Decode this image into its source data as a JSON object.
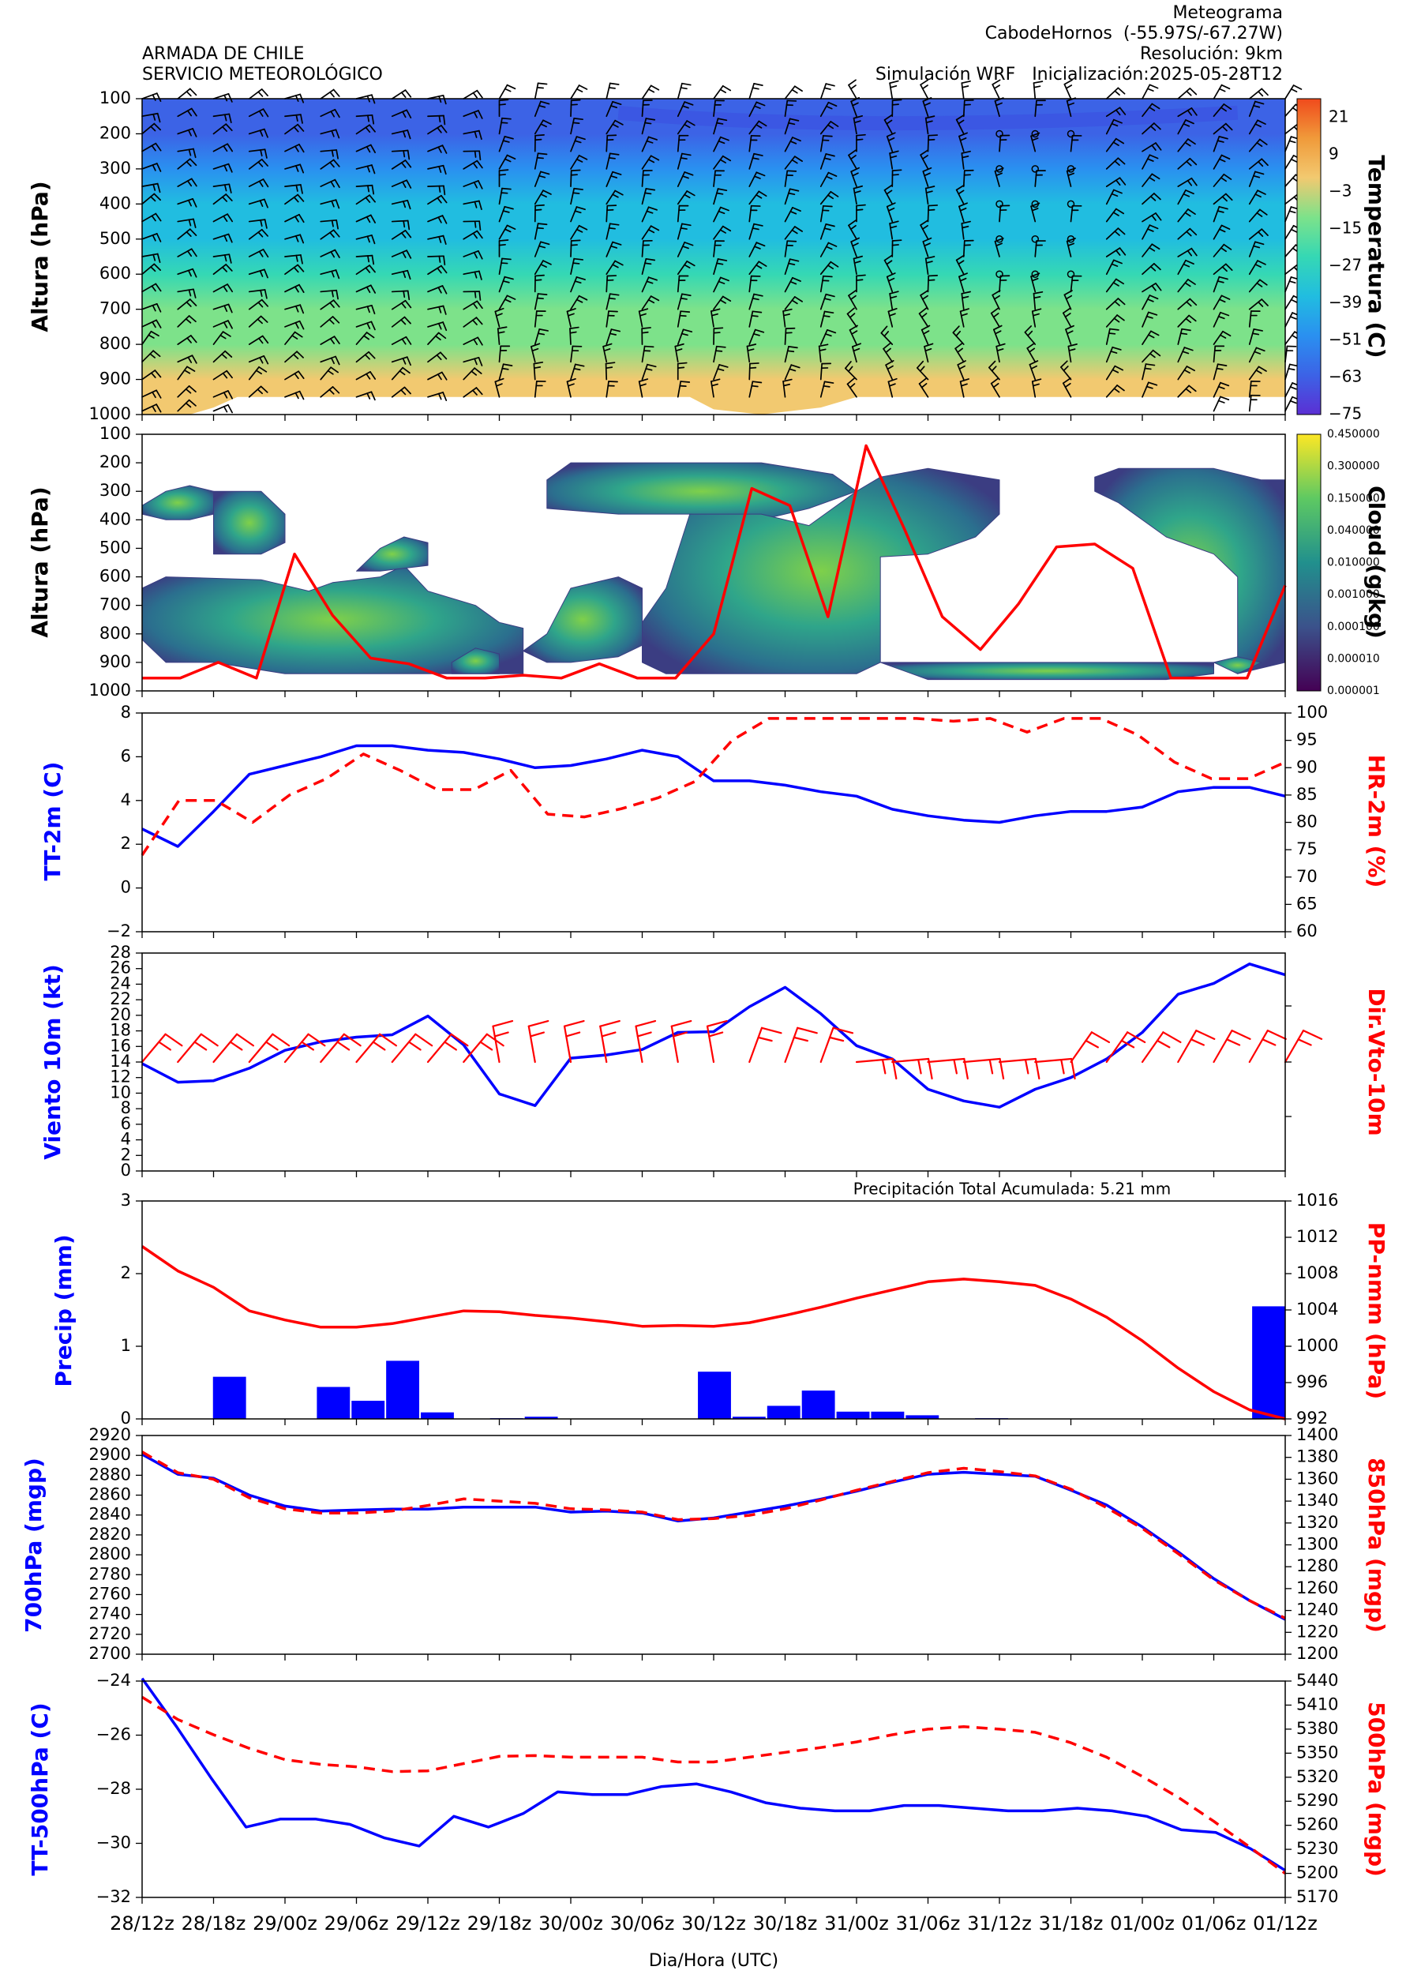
{
  "header": {
    "org_line1": "ARMADA DE CHILE",
    "org_line2": "SERVICIO METEOROLÓGICO",
    "title": "Meteograma",
    "station": "CabodeHornos  (-55.97S/-67.27W)",
    "resolution": "Resolución: 9km",
    "run": "Simulación WRF   Inicialización:2025-05-28T12"
  },
  "x_axis": {
    "label": "Dia/Hora (UTC)",
    "ticks": [
      "28/12z",
      "28/18z",
      "29/00z",
      "29/06z",
      "29/12z",
      "29/18z",
      "30/00z",
      "30/06z",
      "30/12z",
      "30/18z",
      "31/00z",
      "31/06z",
      "31/12z",
      "31/18z",
      "01/00z",
      "01/06z",
      "01/12z"
    ]
  },
  "colors": {
    "blue": "#0000ff",
    "red": "#ff0000"
  },
  "chart_data": [
    {
      "type": "heatmap",
      "panel": "temperature_wind_profile",
      "ylabel": "Altura (hPa)",
      "y_ticks": [
        "100",
        "200",
        "300",
        "400",
        "500",
        "600",
        "700",
        "800",
        "900",
        "1000"
      ],
      "ylim": [
        1000,
        100
      ],
      "colorbar_label": "Temperatura (C)",
      "colorbar_ticks": [
        "21",
        "9",
        "−3",
        "−15",
        "−27",
        "−39",
        "−51",
        "−63",
        "−75"
      ],
      "temperature_by_level": [
        {
          "level": 100,
          "t": -51
        },
        {
          "level": 200,
          "t": -57
        },
        {
          "level": 300,
          "t": -45
        },
        {
          "level": 400,
          "t": -33
        },
        {
          "level": 500,
          "t": -27
        },
        {
          "level": 600,
          "t": -19
        },
        {
          "level": 700,
          "t": -12
        },
        {
          "level": 800,
          "t": -6
        },
        {
          "level": 900,
          "t": 0
        }
      ],
      "wind_barbs": "wind barbs drawn at every level and time step"
    },
    {
      "type": "heatmap",
      "panel": "cloud_profile",
      "ylabel": "Altura (hPa)",
      "y_ticks": [
        "100",
        "200",
        "300",
        "400",
        "500",
        "600",
        "700",
        "800",
        "900",
        "1000"
      ],
      "ylim": [
        1000,
        100
      ],
      "colorbar_label": "Cloud (g/kg)",
      "colorbar_ticks": [
        "0.450000",
        "0.300000",
        "0.150000",
        "0.040000",
        "0.010000",
        "0.001000",
        "0.000100",
        "0.000010",
        "0.000001"
      ],
      "red_line_pressure_hpa": [
        955,
        955,
        900,
        955,
        520,
        735,
        885,
        905,
        955,
        955,
        945,
        955,
        905,
        955,
        955,
        800,
        290,
        350,
        740,
        140,
        430,
        740,
        855,
        695,
        495,
        485,
        570,
        955,
        955,
        955,
        630
      ]
    },
    {
      "type": "line",
      "panel": "surface_temperature_humidity",
      "ylabel": "TT-2m (C)",
      "ylabel_right": "HR-2m (%)",
      "y_ticks": [
        "−2",
        "0",
        "2",
        "4",
        "6",
        "8"
      ],
      "y_ticks_right": [
        "60",
        "65",
        "70",
        "75",
        "80",
        "85",
        "90",
        "95",
        "100"
      ],
      "ylim": [
        -2,
        8
      ],
      "ylim_right": [
        60,
        100
      ],
      "series": [
        {
          "axis": "left",
          "color": "#0000ff",
          "dash": false,
          "values": [
            2.7,
            1.9,
            3.5,
            5.2,
            5.6,
            6.0,
            6.5,
            6.5,
            6.3,
            6.2,
            5.9,
            5.5,
            5.6,
            5.9,
            6.3,
            6.0,
            4.9,
            4.9,
            4.7,
            4.4,
            4.2,
            3.6,
            3.3,
            3.1,
            3.0,
            3.3,
            3.5,
            3.5,
            3.7,
            4.4,
            4.6,
            4.6,
            4.2
          ]
        },
        {
          "axis": "right",
          "color": "#ff0000",
          "dash": true,
          "values": [
            74,
            84,
            84,
            80,
            85,
            88,
            92.5,
            89.5,
            86,
            86,
            89.5,
            81.5,
            81,
            82.5,
            84.5,
            87.5,
            95,
            99,
            99,
            99,
            99,
            99,
            98.5,
            99,
            96.5,
            99,
            99,
            96,
            91,
            88,
            88,
            91
          ]
        }
      ]
    },
    {
      "type": "line",
      "panel": "wind_10m",
      "ylabel": "Viento 10m (kt)",
      "ylabel_right": "Dir.Vto-10m",
      "y_ticks": [
        "0",
        "2",
        "4",
        "6",
        "8",
        "10",
        "12",
        "14",
        "16",
        "18",
        "20",
        "22",
        "24",
        "26",
        "28"
      ],
      "ylim": [
        0,
        28
      ],
      "series": [
        {
          "axis": "left",
          "color": "#0000ff",
          "dash": false,
          "values": [
            13.8,
            11.4,
            11.6,
            13.2,
            15.5,
            16.6,
            17.2,
            17.5,
            19.9,
            16.2,
            9.9,
            8.4,
            14.5,
            14.9,
            15.6,
            17.8,
            17.9,
            21.1,
            23.6,
            20.2,
            16.1,
            14.4,
            10.5,
            9.0,
            8.2,
            10.5,
            12.0,
            14.4,
            17.8,
            22.7,
            24.1,
            26.6,
            25.2
          ]
        }
      ],
      "wind_barbs": "red 10m wind barbs at each time step"
    },
    {
      "type": "bar",
      "panel": "precipitation_pressure",
      "ylabel": "Precip (mm)",
      "ylabel_right": "PP-nmm (hPa)",
      "annotation": "Precipitación Total Acumulada: 5.21 mm",
      "y_ticks": [
        "0",
        "1",
        "2",
        "3"
      ],
      "y_ticks_right": [
        "992",
        "996",
        "1000",
        "1004",
        "1008",
        "1012",
        "1016"
      ],
      "ylim": [
        0,
        3
      ],
      "ylim_right": [
        992,
        1016
      ],
      "bars": [
        0,
        0,
        0.58,
        0,
        0,
        0.44,
        0.25,
        0.8,
        0.09,
        0,
        0.01,
        0.03,
        0,
        0,
        0,
        0,
        0.65,
        0.03,
        0.18,
        0.39,
        0.1,
        0.1,
        0.05,
        0,
        0.01,
        0,
        0,
        0,
        0,
        0,
        0,
        0,
        1.55
      ],
      "series": [
        {
          "axis": "right",
          "color": "#ff0000",
          "dash": false,
          "values": [
            1011,
            1008.3,
            1006.5,
            1003.9,
            1002.9,
            1002.1,
            1002.1,
            1002.5,
            1003.2,
            1003.9,
            1003.8,
            1003.4,
            1003.1,
            1002.7,
            1002.2,
            1002.3,
            1002.2,
            1002.6,
            1003.4,
            1004.3,
            1005.3,
            1006.2,
            1007.1,
            1007.4,
            1007.1,
            1006.7,
            1005.2,
            1003.2,
            1000.6,
            997.6,
            995.0,
            993.0,
            992
          ]
        }
      ]
    },
    {
      "type": "line",
      "panel": "geopotential_heights",
      "ylabel": "700hPa (mgp)",
      "ylabel_right": "850hPa (mgp)",
      "y_ticks": [
        "2700",
        "2720",
        "2740",
        "2760",
        "2780",
        "2800",
        "2820",
        "2840",
        "2860",
        "2880",
        "2900",
        "2920"
      ],
      "y_ticks_right": [
        "1200",
        "1220",
        "1240",
        "1260",
        "1280",
        "1300",
        "1320",
        "1340",
        "1360",
        "1380",
        "1400"
      ],
      "ylim": [
        2700,
        2920
      ],
      "ylim_right": [
        1200,
        1400
      ],
      "series": [
        {
          "axis": "left",
          "color": "#0000ff",
          "dash": false,
          "values": [
            2901,
            2881,
            2877,
            2860,
            2849,
            2844,
            2845,
            2846,
            2846,
            2848,
            2848,
            2848,
            2843,
            2844,
            2842,
            2834,
            2837,
            2843,
            2849,
            2856,
            2864,
            2873,
            2881,
            2883,
            2881,
            2879,
            2865,
            2850,
            2828,
            2803,
            2776,
            2754,
            2735
          ]
        },
        {
          "axis": "right",
          "color": "#ff0000",
          "dash": true,
          "values": [
            1385,
            1366,
            1360,
            1343,
            1333,
            1329,
            1329,
            1331,
            1336,
            1342,
            1340,
            1338,
            1333,
            1332,
            1330,
            1323,
            1324,
            1327,
            1333,
            1341,
            1350,
            1358,
            1366,
            1370,
            1367,
            1363,
            1351,
            1334,
            1315,
            1292,
            1268,
            1249,
            1233
          ]
        }
      ]
    },
    {
      "type": "line",
      "panel": "mid_level_temperature_height",
      "ylabel": "TT-500hPa (C)",
      "ylabel_right": "500hPa (mgp)",
      "y_ticks": [
        "−32",
        "−30",
        "−28",
        "−26",
        "−24"
      ],
      "y_ticks_right": [
        "5170",
        "5200",
        "5230",
        "5260",
        "5290",
        "5320",
        "5350",
        "5380",
        "5410",
        "5440"
      ],
      "ylim": [
        -32,
        -24
      ],
      "ylim_right": [
        5170,
        5440
      ],
      "series": [
        {
          "axis": "left",
          "color": "#0000ff",
          "dash": false,
          "values": [
            -23.9,
            -25.7,
            -27.6,
            -29.4,
            -29.1,
            -29.1,
            -29.3,
            -29.8,
            -30.1,
            -29.0,
            -29.4,
            -28.9,
            -28.1,
            -28.2,
            -28.2,
            -27.9,
            -27.8,
            -28.1,
            -28.5,
            -28.7,
            -28.8,
            -28.8,
            -28.6,
            -28.6,
            -28.7,
            -28.8,
            -28.8,
            -28.7,
            -28.8,
            -29.0,
            -29.5,
            -29.6,
            -30.2,
            -31.0
          ]
        },
        {
          "axis": "right",
          "color": "#ff0000",
          "dash": true,
          "values": [
            5420,
            5392,
            5373,
            5356,
            5342,
            5336,
            5333,
            5327,
            5328,
            5337,
            5346,
            5347,
            5345,
            5345,
            5345,
            5339,
            5339,
            5345,
            5351,
            5357,
            5364,
            5373,
            5380,
            5383,
            5380,
            5376,
            5363,
            5345,
            5321,
            5295,
            5265,
            5233,
            5200
          ]
        }
      ]
    }
  ]
}
